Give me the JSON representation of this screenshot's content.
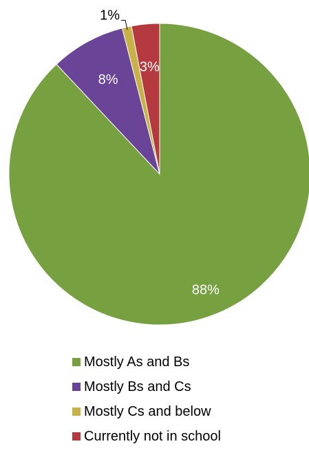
{
  "chart_data": {
    "type": "pie",
    "title": "",
    "slices": [
      {
        "label": "Mostly As and Bs",
        "value": 88,
        "data_label": "88%",
        "color": "#77A040"
      },
      {
        "label": "Mostly Bs and Cs",
        "value": 8,
        "data_label": "8%",
        "color": "#6A4496"
      },
      {
        "label": "Mostly Cs and below",
        "value": 1,
        "data_label": "1%",
        "color": "#C9B14A"
      },
      {
        "label": "Currently not in school",
        "value": 3,
        "data_label": "3%",
        "color": "#B53A3F"
      }
    ],
    "legend_position": "bottom"
  }
}
